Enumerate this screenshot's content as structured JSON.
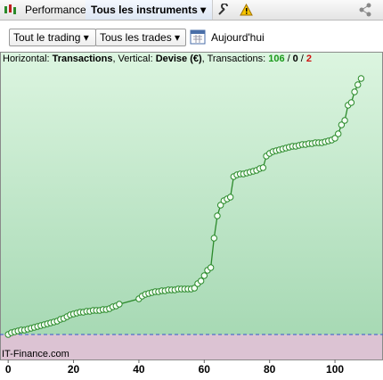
{
  "toolbar": {
    "tab": "Performance",
    "selector": "Tous les instruments"
  },
  "filters": {
    "trading": "Tout le trading",
    "trades": "Tous les trades",
    "date": "Aujourd'hui"
  },
  "chart_data": {
    "type": "line",
    "header": {
      "h_label": "Horizontal:",
      "h_value": "Transactions",
      "v_label": ", Vertical:",
      "v_value": "Devise (€)",
      "t_label": ", Transactions:",
      "counts": [
        106,
        0,
        2
      ],
      "count_colors": [
        "#1a9a1a",
        "#000000",
        "#d01010"
      ],
      "separator": "/"
    },
    "watermark": "IT-Finance.com",
    "x": [
      0,
      1,
      2,
      3,
      4,
      5,
      6,
      7,
      8,
      9,
      10,
      11,
      12,
      13,
      14,
      15,
      16,
      17,
      18,
      19,
      20,
      21,
      22,
      23,
      24,
      25,
      26,
      27,
      28,
      29,
      30,
      31,
      32,
      33,
      34,
      40,
      41,
      42,
      43,
      44,
      45,
      46,
      47,
      48,
      49,
      50,
      51,
      52,
      53,
      54,
      55,
      56,
      57,
      58,
      59,
      60,
      61,
      62,
      63,
      64,
      65,
      66,
      67,
      68,
      69,
      70,
      71,
      72,
      73,
      74,
      75,
      76,
      77,
      78,
      79,
      80,
      81,
      82,
      83,
      84,
      85,
      86,
      87,
      88,
      89,
      90,
      91,
      92,
      93,
      94,
      95,
      96,
      97,
      98,
      99,
      100,
      101,
      102,
      103,
      104,
      105,
      106,
      107,
      108
    ],
    "series": [
      {
        "color": "#2b8a2b",
        "values": [
          0,
          2,
          3,
          4,
          5,
          5,
          6,
          7,
          8,
          9,
          10,
          11,
          12,
          13,
          14,
          15,
          17,
          18,
          20,
          22,
          23,
          24,
          25,
          25,
          26,
          26,
          27,
          27,
          27,
          28,
          28,
          29,
          31,
          32,
          34,
          40,
          43,
          45,
          46,
          47,
          48,
          48,
          49,
          49,
          50,
          50,
          50,
          51,
          51,
          51,
          51,
          51,
          52,
          57,
          60,
          66,
          72,
          75,
          108,
          133,
          145,
          150,
          152,
          154,
          177,
          179,
          180,
          180,
          181,
          182,
          183,
          184,
          186,
          187,
          200,
          203,
          205,
          206,
          207,
          208,
          209,
          210,
          211,
          211,
          212,
          213,
          213,
          214,
          214,
          215,
          215,
          215,
          216,
          217,
          218,
          220,
          225,
          235,
          240,
          257,
          260,
          272,
          280,
          287
        ]
      }
    ],
    "zero_line": 0,
    "zero_color": "#3355cc",
    "xlim": [
      -2.5,
      114.7
    ],
    "ylim": [
      -28,
      317
    ],
    "xticks": [
      0,
      20,
      40,
      60,
      80,
      100
    ]
  }
}
